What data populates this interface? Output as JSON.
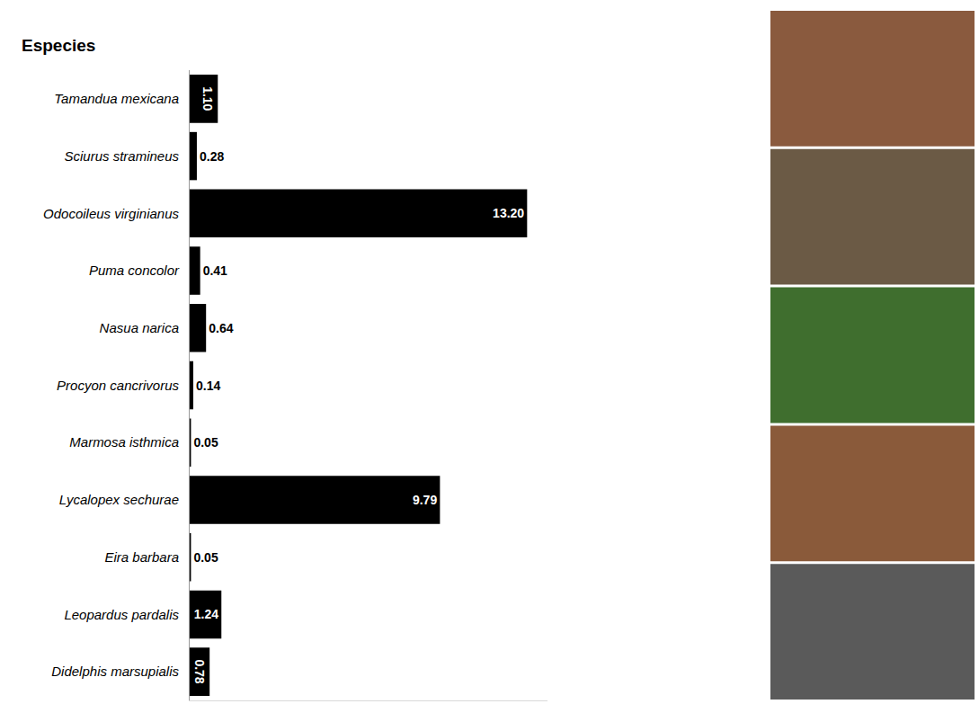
{
  "chart_data": {
    "type": "bar",
    "orientation": "horizontal",
    "ylabel": "Especies",
    "categories": [
      "Tamandua mexicana",
      "Sciurus stramineus",
      "Odocoileus virginianus",
      "Puma concolor",
      "Nasua narica",
      "Procyon cancrivorus",
      "Marmosa isthmica",
      "Lycalopex sechurae",
      "Eira barbara",
      "Leopardus pardalis",
      "Didelphis marsupialis"
    ],
    "values": [
      1.1,
      0.28,
      13.2,
      0.41,
      0.64,
      0.14,
      0.05,
      9.79,
      0.05,
      1.24,
      0.78
    ],
    "value_labels": [
      "1.10",
      "0.28",
      "13.20",
      "0.41",
      "0.64",
      "0.14",
      "0.05",
      "9.79",
      "0.05",
      "1.24",
      "0.78"
    ],
    "color": "#000000",
    "xlim": [
      0,
      14
    ],
    "data_labels": true,
    "tick_labels": "y",
    "grid": false
  }
}
